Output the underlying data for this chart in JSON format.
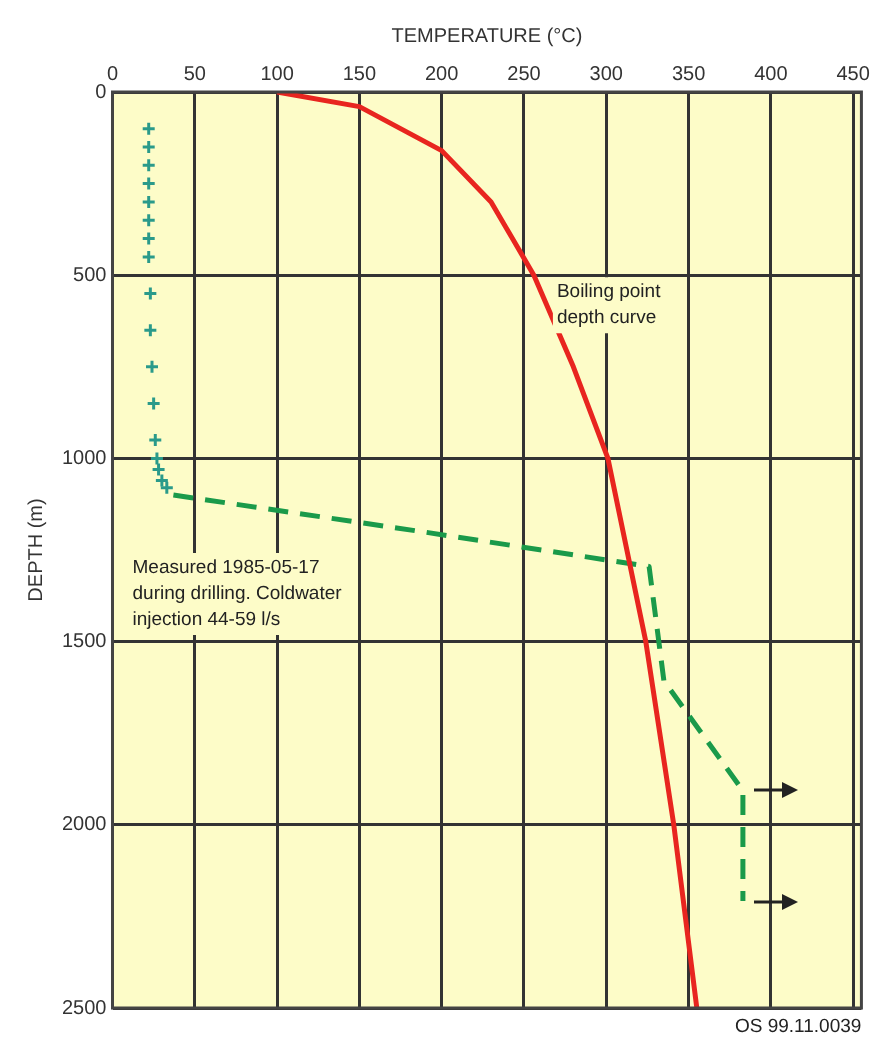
{
  "chart_data": {
    "type": "line",
    "xlabel": "TEMPERATURE (°C)",
    "ylabel": "DEPTH (m)",
    "xlim": [
      0,
      455
    ],
    "xticks": [
      0,
      50,
      100,
      150,
      200,
      250,
      300,
      350,
      400,
      450
    ],
    "ylim": [
      2500,
      0
    ],
    "yticks": [
      0,
      500,
      1000,
      1500,
      2000,
      2500
    ],
    "grid": true,
    "legend": false,
    "series": [
      {
        "color": "#e8251f",
        "line_style": "solid",
        "marker": "none",
        "x": [
          100,
          150,
          200,
          230,
          256,
          280,
          301,
          324,
          341,
          355
        ],
        "values": [
          0,
          40,
          160,
          300,
          500,
          750,
          1000,
          1500,
          2000,
          2500
        ]
      },
      {
        "type": "scatter",
        "color": "#2a9a8a",
        "marker": "cross",
        "x": [
          22,
          22,
          22,
          22,
          22,
          22,
          22,
          22,
          23,
          23,
          24,
          25,
          26,
          27,
          28,
          30,
          33
        ],
        "values": [
          100,
          150,
          200,
          250,
          300,
          350,
          400,
          450,
          550,
          650,
          750,
          850,
          950,
          1000,
          1030,
          1060,
          1080
        ]
      },
      {
        "color": "#1a9a4a",
        "line_style": "dashed",
        "marker": "none",
        "x": [
          37,
          188,
          326,
          335,
          383,
          383
        ],
        "values": [
          1100,
          1200,
          1295,
          1607,
          1907,
          2208
        ]
      }
    ],
    "annotations": [
      {
        "text": "Boiling point\ndepth curve",
        "x": 270,
        "y": 560
      },
      "Measured 1985-05-17\nduring drilling. Coldwater\ninjection 44-59 l/s",
      "OS 99.11.0039"
    ]
  }
}
